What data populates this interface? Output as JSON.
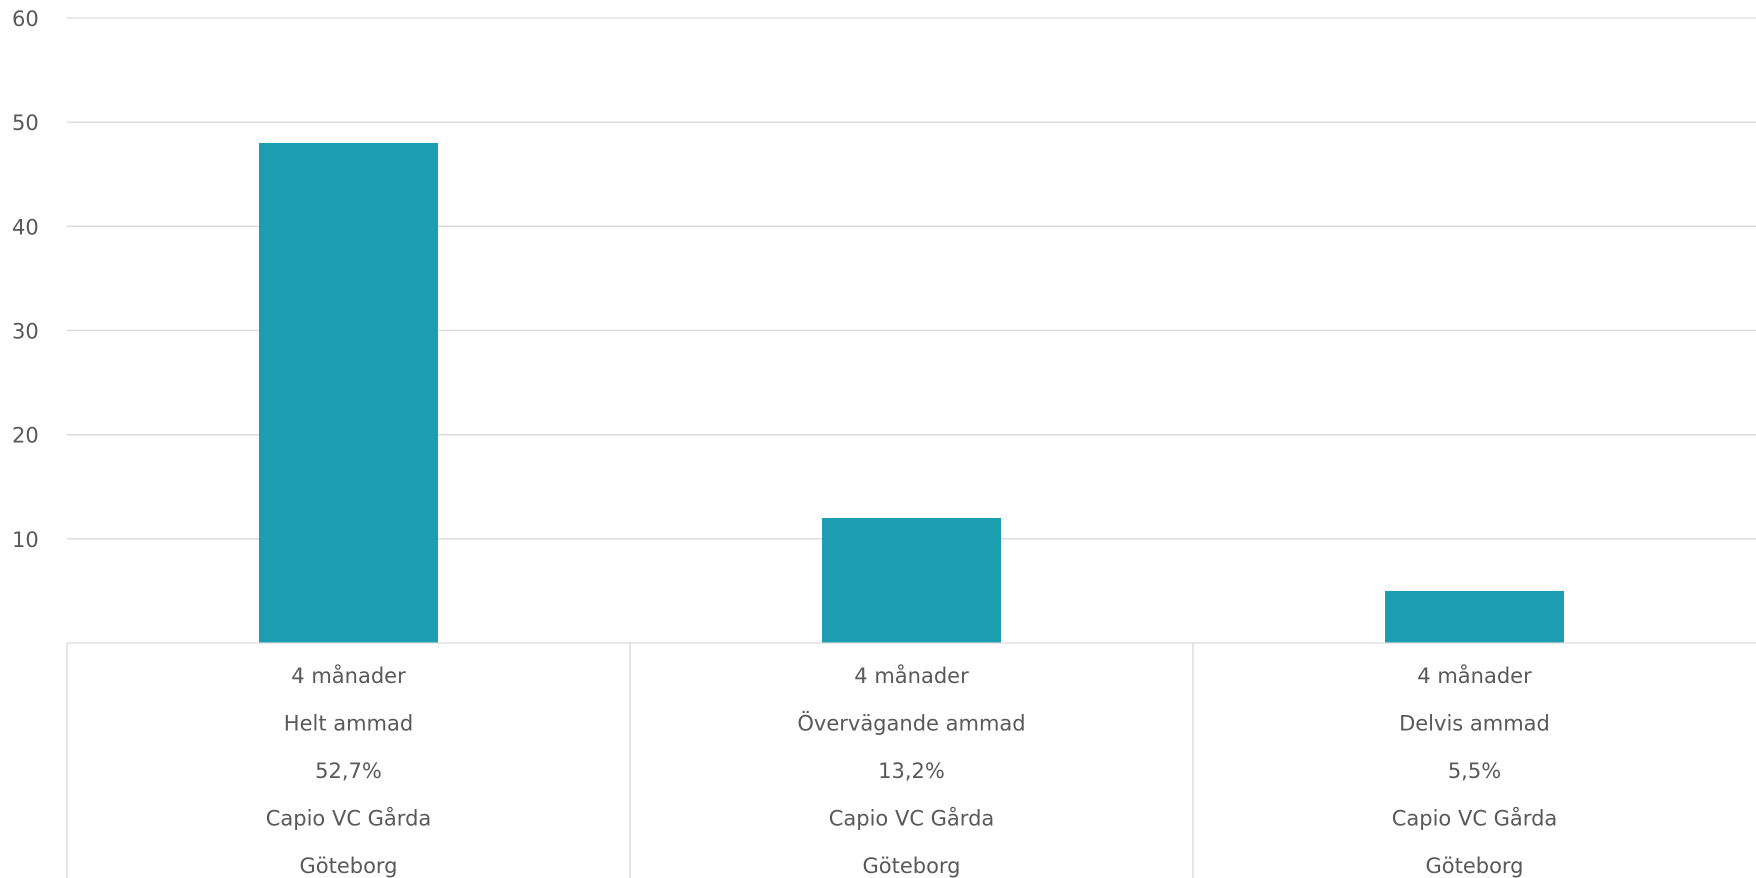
{
  "chart_data": {
    "type": "bar",
    "title": "",
    "xlabel": "",
    "ylabel": "",
    "ylim": [
      0,
      60
    ],
    "yticks": [
      10,
      20,
      30,
      40,
      50,
      60
    ],
    "grid": true,
    "bar_color": "#1c9db1",
    "grid_color": "#d9d9d9",
    "text_color": "#595959",
    "categories": [
      {
        "label_lines": [
          "4 månader",
          "Helt ammad",
          "52,7%",
          "Capio VC Gårda",
          "Göteborg"
        ]
      },
      {
        "label_lines": [
          "4 månader",
          "Övervägande ammad",
          "13,2%",
          "Capio VC Gårda",
          "Göteborg"
        ]
      },
      {
        "label_lines": [
          "4 månader",
          "Delvis ammad",
          "5,5%",
          "Capio VC Gårda",
          "Göteborg"
        ]
      }
    ],
    "values": [
      48,
      12,
      5
    ]
  }
}
